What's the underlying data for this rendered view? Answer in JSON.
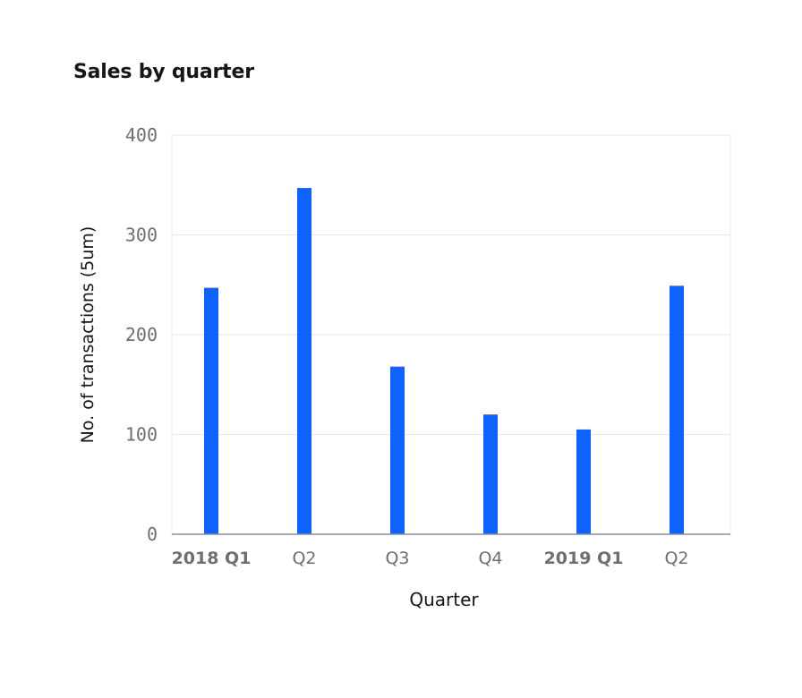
{
  "chart_data": {
    "type": "bar",
    "title": "Sales by quarter",
    "xlabel": "Quarter",
    "ylabel": "No. of transactions (5um)",
    "categories": [
      "2018 Q1",
      "Q2",
      "Q3",
      "Q4",
      "2019 Q1",
      "Q2"
    ],
    "category_bold": [
      true,
      false,
      false,
      false,
      true,
      false
    ],
    "values": [
      247,
      347,
      168,
      120,
      105,
      249
    ],
    "ylim": [
      0,
      400
    ],
    "yticks": [
      0,
      100,
      200,
      300,
      400
    ],
    "grid": true,
    "bar_color": "#0f62fe",
    "axis_color": "#8d8d8d",
    "grid_color": "#e8e8e8",
    "tick_color": "#6f6f6f",
    "text_color": "#161616"
  }
}
